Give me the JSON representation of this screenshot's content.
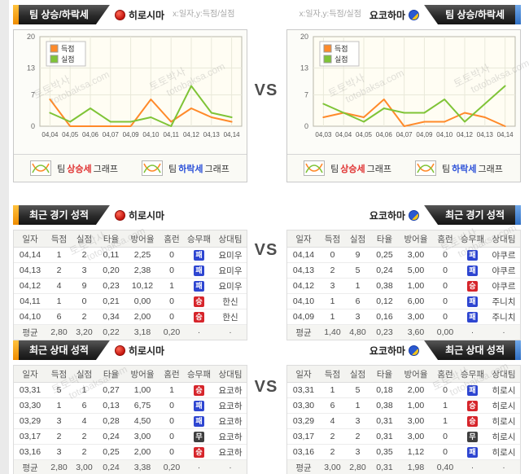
{
  "watermark": {
    "kr": "토토박사",
    "en": "totobaksa.com"
  },
  "vs": "VS",
  "teams": {
    "left": "히로시마",
    "right": "요코하마"
  },
  "trend": {
    "title": "팀 상승/하락세",
    "axis_note": "x:일자,y:득점/실점",
    "footer_team": "팀",
    "footer_up": "상승세",
    "footer_down": "하락세",
    "footer_graph": "그래프"
  },
  "recent": {
    "title": "최근 경기 성적"
  },
  "h2h": {
    "title": "최근 상대 성적"
  },
  "columns": [
    "일자",
    "득점",
    "실점",
    "타율",
    "방어율",
    "홈런",
    "승무패",
    "상대팀"
  ],
  "avg_label": "평균",
  "result_legend": {
    "win": "승",
    "draw": "무",
    "loss": "패"
  },
  "colors": {
    "score_line": "#ff8a2a",
    "concede_line": "#7fc437",
    "win_badge": "#d6252b",
    "draw_badge": "#3e3e3e",
    "loss_badge": "#2e46d1",
    "accent_left": "#f5a11c",
    "accent_right": "#3d7fd9"
  },
  "tables": {
    "recent_left": {
      "rows": [
        [
          "04,14",
          "1",
          "2",
          "0,11",
          "2,25",
          "0",
          "패",
          "요미우"
        ],
        [
          "04,13",
          "2",
          "3",
          "0,20",
          "2,38",
          "0",
          "패",
          "요미우"
        ],
        [
          "04,12",
          "4",
          "9",
          "0,23",
          "10,12",
          "1",
          "패",
          "요미우"
        ],
        [
          "04,11",
          "1",
          "0",
          "0,21",
          "0,00",
          "0",
          "승",
          "한신"
        ],
        [
          "04,10",
          "6",
          "2",
          "0,34",
          "2,00",
          "0",
          "승",
          "한신"
        ]
      ],
      "avg": [
        "평균",
        "2,80",
        "3,20",
        "0,22",
        "3,18",
        "0,20",
        "·",
        "·"
      ]
    },
    "recent_right": {
      "rows": [
        [
          "04,14",
          "0",
          "9",
          "0,25",
          "3,00",
          "0",
          "패",
          "야쿠르"
        ],
        [
          "04,13",
          "2",
          "5",
          "0,24",
          "5,00",
          "0",
          "패",
          "야쿠르"
        ],
        [
          "04,12",
          "3",
          "1",
          "0,38",
          "1,00",
          "0",
          "승",
          "야쿠르"
        ],
        [
          "04,10",
          "1",
          "6",
          "0,12",
          "6,00",
          "0",
          "패",
          "주니치"
        ],
        [
          "04,09",
          "1",
          "3",
          "0,16",
          "3,00",
          "0",
          "패",
          "주니치"
        ]
      ],
      "avg": [
        "평균",
        "1,40",
        "4,80",
        "0,23",
        "3,60",
        "0,00",
        "·",
        "·"
      ]
    },
    "h2h_left": {
      "rows": [
        [
          "03,31",
          "5",
          "1",
          "0,27",
          "1,00",
          "1",
          "승",
          "요코하"
        ],
        [
          "03,30",
          "1",
          "6",
          "0,13",
          "6,75",
          "0",
          "패",
          "요코하"
        ],
        [
          "03,29",
          "3",
          "4",
          "0,28",
          "4,50",
          "0",
          "패",
          "요코하"
        ],
        [
          "03,17",
          "2",
          "2",
          "0,24",
          "3,00",
          "0",
          "무",
          "요코하"
        ],
        [
          "03,16",
          "3",
          "2",
          "0,25",
          "2,00",
          "0",
          "승",
          "요코하"
        ]
      ],
      "avg": [
        "평균",
        "2,80",
        "3,00",
        "0,24",
        "3,38",
        "0,20",
        "·",
        "·"
      ]
    },
    "h2h_right": {
      "rows": [
        [
          "03,31",
          "1",
          "5",
          "0,18",
          "2,00",
          "0",
          "패",
          "히로시"
        ],
        [
          "03,30",
          "6",
          "1",
          "0,38",
          "1,00",
          "1",
          "승",
          "히로시"
        ],
        [
          "03,29",
          "4",
          "3",
          "0,31",
          "3,00",
          "1",
          "승",
          "히로시"
        ],
        [
          "03,17",
          "2",
          "2",
          "0,31",
          "3,00",
          "0",
          "무",
          "히로시"
        ],
        [
          "03,16",
          "2",
          "3",
          "0,35",
          "1,12",
          "0",
          "패",
          "히로시"
        ]
      ],
      "avg": [
        "평균",
        "3,00",
        "2,80",
        "0,31",
        "1,98",
        "0,40",
        "·",
        "·"
      ]
    }
  },
  "chart_data": [
    {
      "type": "line",
      "title": "팀 상승/하락세 - 히로시마",
      "x": [
        "04,04",
        "04,05",
        "04,06",
        "04,07",
        "04,09",
        "04,10",
        "04,11",
        "04,12",
        "04,13",
        "04,14"
      ],
      "xlabel": "일자",
      "ylabel": "득점/실점",
      "ylim": [
        0,
        20
      ],
      "yticks": [
        0,
        7,
        13,
        20
      ],
      "grid": true,
      "legend_position": "top-left",
      "series": [
        {
          "name": "득점",
          "color": "#ff8a2a",
          "values": [
            6,
            0,
            0,
            0,
            0,
            6,
            1,
            4,
            2,
            1
          ]
        },
        {
          "name": "실점",
          "color": "#7fc437",
          "values": [
            3,
            1,
            4,
            1,
            1,
            2,
            0,
            9,
            3,
            2
          ]
        }
      ]
    },
    {
      "type": "line",
      "title": "팀 상승/하락세 - 요코하마",
      "x": [
        "04,03",
        "04,04",
        "04,05",
        "04,06",
        "04,07",
        "04,09",
        "04,10",
        "04,12",
        "04,13",
        "04,14"
      ],
      "xlabel": "일자",
      "ylabel": "득점/실점",
      "ylim": [
        0,
        20
      ],
      "yticks": [
        0,
        7,
        13,
        20
      ],
      "grid": true,
      "legend_position": "top-left",
      "series": [
        {
          "name": "득점",
          "color": "#ff8a2a",
          "values": [
            2,
            3,
            2,
            6,
            0,
            1,
            1,
            3,
            2,
            0
          ]
        },
        {
          "name": "실점",
          "color": "#7fc437",
          "values": [
            5,
            3,
            1,
            4,
            3,
            3,
            6,
            1,
            5,
            9
          ]
        }
      ]
    }
  ]
}
